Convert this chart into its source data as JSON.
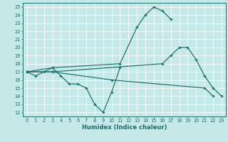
{
  "xlabel": "Humidex (Indice chaleur)",
  "bg_color": "#c5e8e8",
  "grid_color": "#ffffff",
  "line_color": "#1a6e6a",
  "xlim": [
    -0.5,
    23.5
  ],
  "ylim": [
    11.5,
    25.5
  ],
  "xticks": [
    0,
    1,
    2,
    3,
    4,
    5,
    6,
    7,
    8,
    9,
    10,
    11,
    12,
    13,
    14,
    15,
    16,
    17,
    18,
    19,
    20,
    21,
    22,
    23
  ],
  "yticks": [
    12,
    13,
    14,
    15,
    16,
    17,
    18,
    19,
    20,
    21,
    22,
    23,
    24,
    25
  ],
  "series": [
    {
      "x": [
        0,
        1,
        2,
        3,
        4,
        5,
        6,
        7,
        8,
        9,
        10,
        11
      ],
      "y": [
        17,
        16.5,
        17,
        17.5,
        16.5,
        15.5,
        15.5,
        15,
        13,
        12,
        14.5,
        17.5
      ]
    },
    {
      "x": [
        0,
        3,
        10,
        21,
        22
      ],
      "y": [
        17,
        17,
        16,
        15,
        14
      ]
    },
    {
      "x": [
        0,
        3,
        11,
        13,
        14,
        15,
        16,
        17
      ],
      "y": [
        17,
        17.5,
        18,
        22.5,
        24,
        25,
        24.5,
        23.5
      ]
    },
    {
      "x": [
        0,
        3,
        16,
        17,
        18,
        19,
        20,
        21,
        22,
        23
      ],
      "y": [
        17,
        17,
        18,
        19,
        20,
        20,
        18.5,
        16.5,
        15,
        14
      ]
    }
  ]
}
